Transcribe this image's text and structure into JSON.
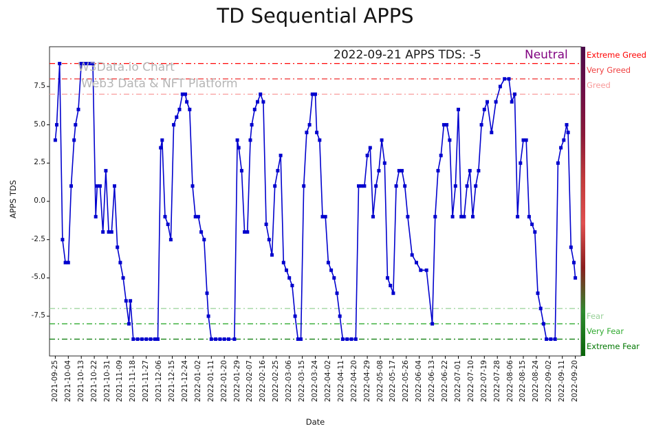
{
  "title": "TD Sequential APPS",
  "watermark": {
    "line1": "W3Data.io Chart",
    "line2": "Web3 Data & NFT Platform"
  },
  "annotation": {
    "text": "2022-09-21 APPS TDS: -5",
    "status": "Neutral",
    "status_color": "#800080"
  },
  "axes": {
    "x_label": "Date",
    "y_label": "APPS TDS"
  },
  "colorbar": {
    "colors": [
      "#4b0b4b",
      "#6e0f46",
      "#8b1a3a",
      "#c23b3b",
      "#e05050",
      "#8b1e1e",
      "#2e8b2e",
      "#0a640a"
    ]
  },
  "chart_data": {
    "type": "line",
    "title": "TD Sequential APPS",
    "xlabel": "Date",
    "ylabel": "APPS TDS",
    "line_color": "#0000cd",
    "marker": "square",
    "grid": false,
    "legend": "none",
    "ylim": [
      -10.1,
      10.1
    ],
    "y_ticks": [
      7.5,
      5.0,
      2.5,
      0.0,
      -2.5,
      -5.0,
      -7.5
    ],
    "x_start_date": "2021-09-25",
    "x_end_date": "2022-09-20",
    "x_tick_interval_days": 9,
    "x_tick_rotation": 90,
    "x_tick_labels": [
      "2021-09-25",
      "2021-10-04",
      "2021-10-13",
      "2021-10-22",
      "2021-10-31",
      "2021-11-09",
      "2021-11-18",
      "2021-11-27",
      "2021-12-06",
      "2021-12-15",
      "2021-12-24",
      "2022-01-02",
      "2022-01-11",
      "2022-01-20",
      "2022-01-29",
      "2022-02-07",
      "2022-02-16",
      "2022-02-25",
      "2022-03-06",
      "2022-03-15",
      "2022-03-24",
      "2022-04-02",
      "2022-04-11",
      "2022-04-20",
      "2022-04-29",
      "2022-05-08",
      "2022-05-17",
      "2022-05-26",
      "2022-06-04",
      "2022-06-13",
      "2022-06-22",
      "2022-07-01",
      "2022-07-10",
      "2022-07-19",
      "2022-07-28",
      "2022-08-06",
      "2022-08-15",
      "2022-08-24",
      "2022-09-02",
      "2022-09-11",
      "2022-09-20"
    ],
    "thresholds": [
      {
        "value": 9,
        "label": "Extreme Greed",
        "color": "#ff0000"
      },
      {
        "value": 8,
        "label": "Very Greed",
        "color": "#f04040"
      },
      {
        "value": 7,
        "label": "Greed",
        "color": "#f89a9a"
      },
      {
        "value": -7,
        "label": "Fear",
        "color": "#97d097"
      },
      {
        "value": -8,
        "label": "Very Fear",
        "color": "#2faa2f"
      },
      {
        "value": -9,
        "label": "Extreme Fear",
        "color": "#007700"
      }
    ],
    "points_format": "[day_offset_from_2021-09-25, APPS_TDS_value]",
    "points": [
      [
        0,
        4
      ],
      [
        1,
        5
      ],
      [
        3,
        9
      ],
      [
        5,
        -2.5
      ],
      [
        7,
        -4
      ],
      [
        9,
        -4
      ],
      [
        11,
        1
      ],
      [
        13,
        4
      ],
      [
        14,
        5
      ],
      [
        16,
        6
      ],
      [
        18,
        9
      ],
      [
        20,
        9
      ],
      [
        22,
        9
      ],
      [
        24,
        9
      ],
      [
        26,
        9
      ],
      [
        28,
        -1
      ],
      [
        29,
        1
      ],
      [
        31,
        1
      ],
      [
        33,
        -2
      ],
      [
        35,
        2
      ],
      [
        37,
        -2
      ],
      [
        39,
        -2
      ],
      [
        41,
        1
      ],
      [
        43,
        -3
      ],
      [
        45,
        -4
      ],
      [
        47,
        -5
      ],
      [
        49,
        -6.5
      ],
      [
        51,
        -8
      ],
      [
        52,
        -6.5
      ],
      [
        54,
        -9
      ],
      [
        57,
        -9
      ],
      [
        60,
        -9
      ],
      [
        63,
        -9
      ],
      [
        66,
        -9
      ],
      [
        69,
        -9
      ],
      [
        71,
        -9
      ],
      [
        73,
        3.5
      ],
      [
        74,
        4
      ],
      [
        76,
        -1
      ],
      [
        78,
        -1.5
      ],
      [
        80,
        -2.5
      ],
      [
        82,
        5
      ],
      [
        84,
        5.5
      ],
      [
        86,
        6
      ],
      [
        88,
        7
      ],
      [
        90,
        7
      ],
      [
        91,
        6.5
      ],
      [
        93,
        6
      ],
      [
        95,
        1
      ],
      [
        97,
        -1
      ],
      [
        99,
        -1
      ],
      [
        101,
        -2
      ],
      [
        103,
        -2.5
      ],
      [
        105,
        -6
      ],
      [
        106,
        -7.5
      ],
      [
        108,
        -9
      ],
      [
        111,
        -9
      ],
      [
        114,
        -9
      ],
      [
        117,
        -9
      ],
      [
        120,
        -9
      ],
      [
        124,
        -9
      ],
      [
        126,
        4
      ],
      [
        127,
        3.5
      ],
      [
        129,
        2
      ],
      [
        131,
        -2
      ],
      [
        133,
        -2
      ],
      [
        135,
        4
      ],
      [
        136,
        5
      ],
      [
        138,
        6
      ],
      [
        140,
        6.5
      ],
      [
        142,
        7
      ],
      [
        144,
        6.5
      ],
      [
        146,
        -1.5
      ],
      [
        148,
        -2.5
      ],
      [
        150,
        -3.5
      ],
      [
        152,
        1
      ],
      [
        154,
        2
      ],
      [
        156,
        3
      ],
      [
        158,
        -4
      ],
      [
        160,
        -4.5
      ],
      [
        162,
        -5
      ],
      [
        164,
        -5.5
      ],
      [
        166,
        -7.5
      ],
      [
        168,
        -9
      ],
      [
        170,
        -9
      ],
      [
        172,
        1
      ],
      [
        174,
        4.5
      ],
      [
        176,
        5
      ],
      [
        178,
        7
      ],
      [
        180,
        7
      ],
      [
        181,
        4.5
      ],
      [
        183,
        4
      ],
      [
        185,
        -1
      ],
      [
        187,
        -1
      ],
      [
        189,
        -4
      ],
      [
        191,
        -4.5
      ],
      [
        193,
        -5
      ],
      [
        195,
        -6
      ],
      [
        197,
        -7.5
      ],
      [
        199,
        -9
      ],
      [
        202,
        -9
      ],
      [
        205,
        -9
      ],
      [
        208,
        -9
      ],
      [
        210,
        1
      ],
      [
        212,
        1
      ],
      [
        214,
        1
      ],
      [
        216,
        3
      ],
      [
        218,
        3.5
      ],
      [
        220,
        -1
      ],
      [
        222,
        1
      ],
      [
        224,
        2
      ],
      [
        226,
        4
      ],
      [
        228,
        2.5
      ],
      [
        230,
        -5
      ],
      [
        232,
        -5.5
      ],
      [
        234,
        -6
      ],
      [
        236,
        1
      ],
      [
        238,
        2
      ],
      [
        240,
        2
      ],
      [
        242,
        1
      ],
      [
        244,
        -1
      ],
      [
        247,
        -3.5
      ],
      [
        250,
        -4
      ],
      [
        253,
        -4.5
      ],
      [
        257,
        -4.5
      ],
      [
        261,
        -8
      ],
      [
        263,
        -1
      ],
      [
        265,
        2
      ],
      [
        267,
        3
      ],
      [
        269,
        5
      ],
      [
        271,
        5
      ],
      [
        273,
        4
      ],
      [
        275,
        -1
      ],
      [
        277,
        1
      ],
      [
        279,
        6
      ],
      [
        281,
        -1
      ],
      [
        283,
        -1
      ],
      [
        285,
        1
      ],
      [
        287,
        2
      ],
      [
        289,
        -1
      ],
      [
        291,
        1
      ],
      [
        293,
        2
      ],
      [
        295,
        5
      ],
      [
        297,
        6
      ],
      [
        299,
        6.5
      ],
      [
        302,
        4.5
      ],
      [
        305,
        6.5
      ],
      [
        308,
        7.5
      ],
      [
        311,
        8
      ],
      [
        314,
        8
      ],
      [
        316,
        6.5
      ],
      [
        318,
        7
      ],
      [
        320,
        -1
      ],
      [
        322,
        2.5
      ],
      [
        324,
        4
      ],
      [
        326,
        4
      ],
      [
        328,
        -1
      ],
      [
        330,
        -1.5
      ],
      [
        332,
        -2
      ],
      [
        334,
        -6
      ],
      [
        336,
        -7
      ],
      [
        338,
        -8
      ],
      [
        340,
        -9
      ],
      [
        343,
        -9
      ],
      [
        346,
        -9
      ],
      [
        348,
        2.5
      ],
      [
        350,
        3.5
      ],
      [
        352,
        4
      ],
      [
        354,
        5
      ],
      [
        355,
        4.5
      ],
      [
        357,
        -3
      ],
      [
        359,
        -4
      ],
      [
        360,
        -5
      ]
    ]
  }
}
